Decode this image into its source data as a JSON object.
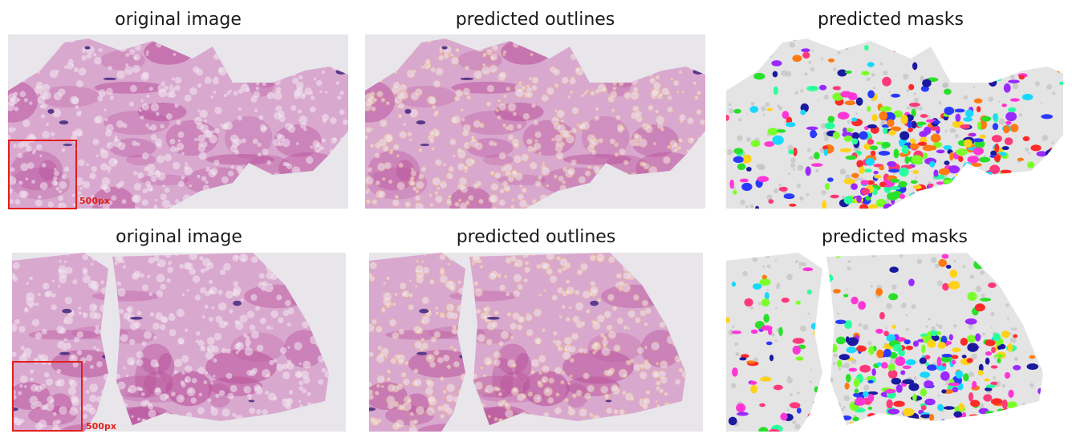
{
  "rows": [
    {
      "titles": [
        "original image",
        "predicted outlines",
        "predicted masks"
      ],
      "scale_label": "500px"
    },
    {
      "titles": [
        "original image",
        "predicted outlines",
        "predicted masks"
      ],
      "scale_label": "500px"
    }
  ],
  "colors": {
    "tissue_light": "#d9a8cf",
    "tissue_dark": "#b8509a",
    "background_slide": "#e8e6ea",
    "outline": "#f0c070",
    "scale_box": "#e0201c"
  },
  "mask_palette": [
    "#ff2a2a",
    "#2a3aff",
    "#2adf2a",
    "#ff36d6",
    "#ffd21a",
    "#18d8ff",
    "#9a2aff",
    "#ff7a10",
    "#2aff9e",
    "#1a1aa0",
    "#ff3a7a",
    "#7aff2a"
  ]
}
